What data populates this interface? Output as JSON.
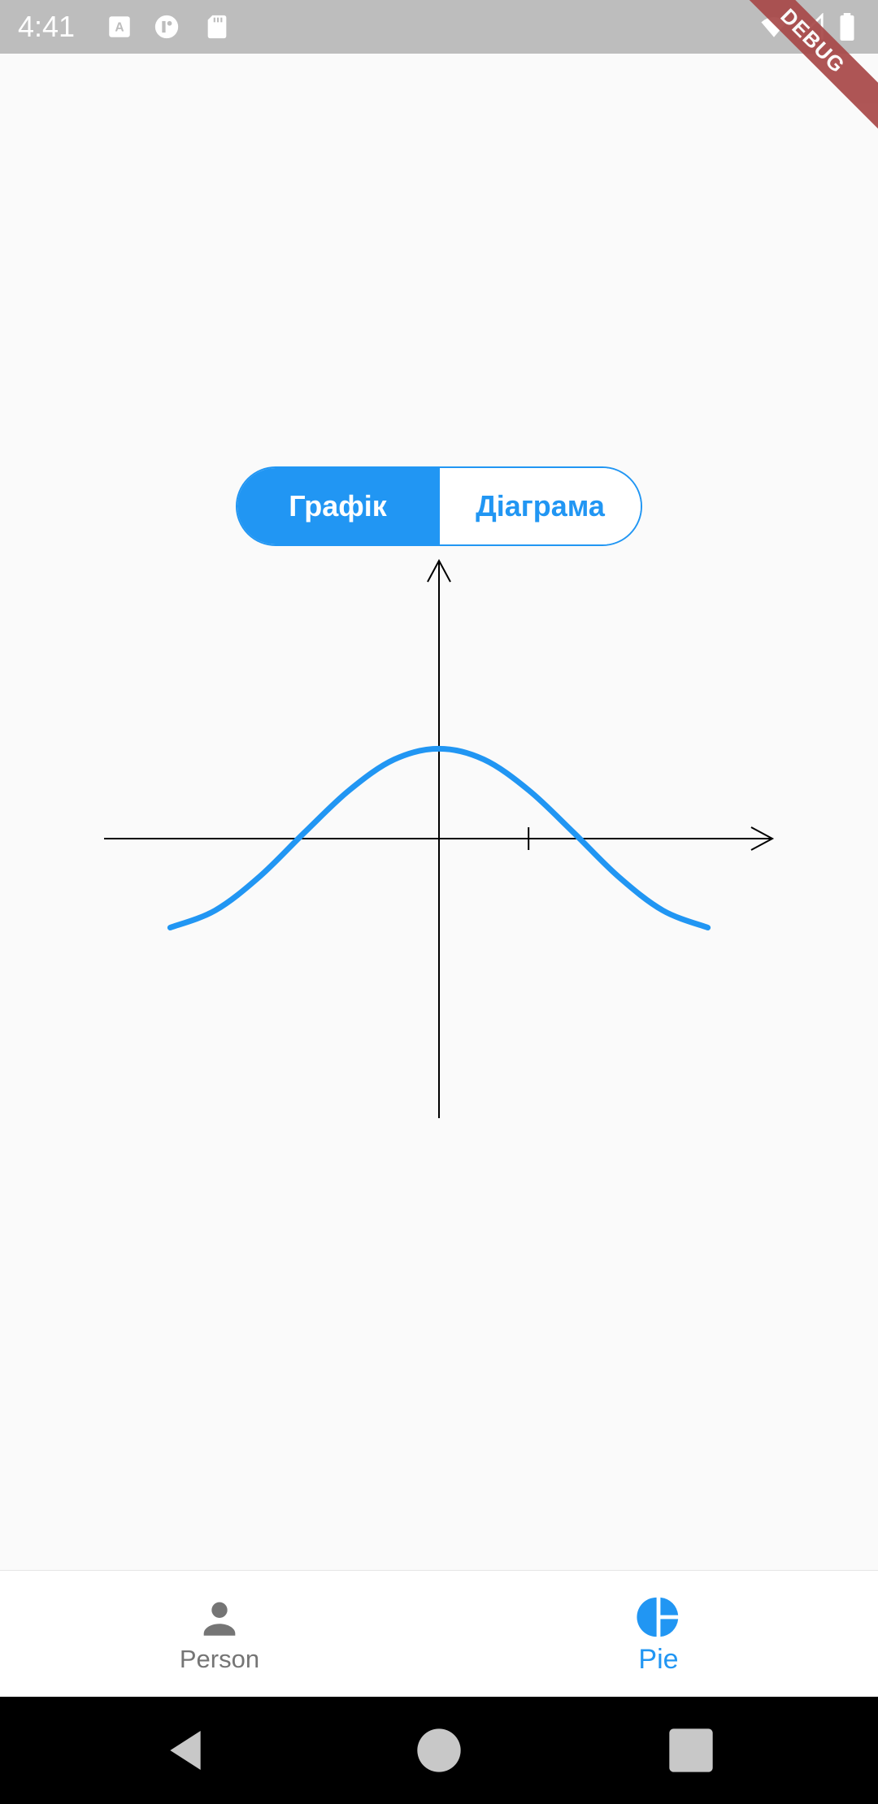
{
  "status_bar": {
    "time": "4:41",
    "icons": [
      "keyboard-a-icon",
      "circle-app-icon",
      "sd-card-icon",
      "wifi-icon",
      "signal-icon",
      "battery-icon"
    ]
  },
  "debug_banner": "DEBUG",
  "toggle": {
    "options": [
      {
        "label": "Графік",
        "selected": true
      },
      {
        "label": "Діаграма",
        "selected": false
      }
    ]
  },
  "chart_data": {
    "type": "line",
    "function": "cos",
    "x": [
      -3.0,
      -2.5,
      -2.0,
      -1.5,
      -1.0,
      -0.5,
      0,
      0.5,
      1.0,
      1.5,
      2.0,
      2.5,
      3.0
    ],
    "y": [
      -0.99,
      -0.8,
      -0.42,
      0.07,
      0.54,
      0.88,
      1.0,
      0.88,
      0.54,
      0.07,
      -0.42,
      -0.8,
      -0.99
    ],
    "xlim": [
      -3.73,
      3.73
    ],
    "ylim": [
      -3.1,
      3.1
    ],
    "x_ticks": [
      1
    ],
    "grid": false,
    "series_color": "#2196f3"
  },
  "bottom_nav": {
    "items": [
      {
        "label": "Person",
        "icon": "person-icon",
        "active": false
      },
      {
        "label": "Pie",
        "icon": "pie-chart-icon",
        "active": true
      }
    ]
  },
  "colors": {
    "accent": "#2196f3",
    "inactive": "#757575"
  }
}
